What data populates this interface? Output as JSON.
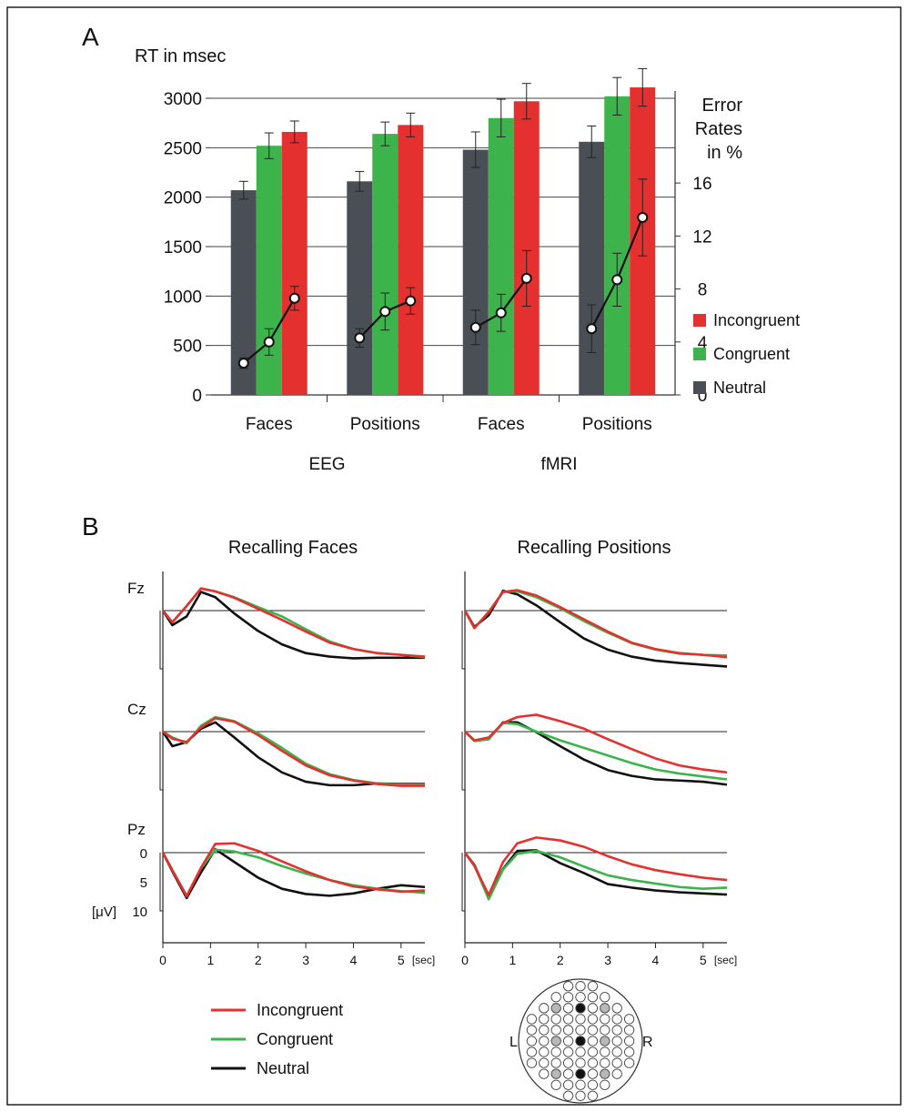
{
  "panelA": {
    "label": "A",
    "ylabel": "RT in msec",
    "y2label_lines": [
      "Error",
      "Rates",
      "in %"
    ],
    "chart_data": {
      "type": "bar",
      "categories": [
        "Faces",
        "Positions",
        "Faces",
        "Positions"
      ],
      "groups": [
        "EEG",
        "fMRI"
      ],
      "ylim": [
        0,
        3000
      ],
      "yticks": [
        0,
        500,
        1000,
        1500,
        2000,
        2500,
        3000
      ],
      "y2lim": [
        0,
        22.4
      ],
      "y2ticks": [
        0,
        4,
        8,
        12,
        16
      ],
      "grid": "horizontal",
      "legend": "right",
      "series": [
        {
          "name": "Neutral",
          "color": "#4a4f55",
          "values": [
            2070,
            2160,
            2480,
            2560
          ],
          "errors": [
            90,
            100,
            180,
            160
          ]
        },
        {
          "name": "Congruent",
          "color": "#3cb44b",
          "values": [
            2520,
            2640,
            2800,
            3020
          ],
          "errors": [
            130,
            120,
            190,
            190
          ]
        },
        {
          "name": "Incongruent",
          "color": "#e53030",
          "values": [
            2660,
            2730,
            2970,
            3110
          ],
          "errors": [
            110,
            120,
            180,
            190
          ]
        }
      ],
      "error_rates": {
        "values": [
          2.4,
          4.0,
          7.3,
          4.3,
          6.3,
          7.1,
          5.1,
          6.2,
          8.8,
          5.0,
          8.7,
          13.4
        ],
        "errors": [
          0.4,
          1.0,
          0.9,
          0.7,
          1.4,
          1.0,
          1.3,
          1.4,
          2.1,
          1.8,
          2.0,
          2.9
        ]
      }
    },
    "legend": [
      {
        "label": "Incongruent",
        "color": "#e53030"
      },
      {
        "label": "Congruent",
        "color": "#3cb44b"
      },
      {
        "label": "Neutral",
        "color": "#4a4f55"
      }
    ]
  },
  "panelB": {
    "label": "B",
    "col_titles": [
      "Recalling Faces",
      "Recalling Positions"
    ],
    "rows": [
      "Fz",
      "Cz",
      "Pz"
    ],
    "y_ticks": [
      "0",
      "5",
      "10"
    ],
    "y_unit": "[μV]",
    "x_ticks": [
      "0",
      "1",
      "2",
      "3",
      "4",
      "5"
    ],
    "x_unit": "[sec]",
    "chart_data": {
      "type": "line",
      "x_range": [
        0,
        5.5
      ],
      "y_range": [
        10,
        -3
      ],
      "y_inverted": true,
      "colors": {
        "Incongruent": "#e53030",
        "Congruent": "#3cb44b",
        "Neutral": "#111111"
      },
      "x": [
        0,
        0.2,
        0.5,
        0.8,
        1.1,
        1.5,
        2,
        2.5,
        3,
        3.5,
        4,
        4.5,
        5,
        5.5
      ],
      "panels": [
        {
          "column": "Recalling Faces",
          "electrode": "Fz",
          "series": [
            {
              "name": "Incongruent",
              "values": [
                0,
                2,
                -0.8,
                -3.8,
                -3.3,
                -2.2,
                -0.3,
                1.6,
                3.6,
                5.5,
                6.6,
                7.3,
                7.6,
                7.9
              ]
            },
            {
              "name": "Congruent",
              "values": [
                0,
                2,
                -0.8,
                -3.8,
                -3.3,
                -2.3,
                -0.6,
                1.0,
                3.2,
                5.3,
                6.6,
                7.3,
                7.6,
                8.0
              ]
            },
            {
              "name": "Neutral",
              "values": [
                0,
                2.5,
                1.0,
                -3.2,
                -2.3,
                0.5,
                3.5,
                5.8,
                7.3,
                7.9,
                8.2,
                8.1,
                8.1,
                8.1
              ]
            }
          ]
        },
        {
          "column": "Recalling Faces",
          "electrode": "Cz",
          "series": [
            {
              "name": "Incongruent",
              "values": [
                0,
                1.2,
                1.8,
                -0.7,
                -2.3,
                -1.7,
                0.6,
                3.3,
                5.8,
                7.5,
                8.4,
                9.0,
                9.3,
                9.3
              ]
            },
            {
              "name": "Congruent",
              "values": [
                0,
                1.0,
                2.0,
                -1.0,
                -2.5,
                -1.8,
                0.3,
                2.8,
                5.5,
                7.3,
                8.3,
                8.9,
                9.1,
                9.1
              ]
            },
            {
              "name": "Neutral",
              "values": [
                0,
                2.5,
                1.8,
                -0.5,
                -1.6,
                1.0,
                4.4,
                7.0,
                8.6,
                9.2,
                9.2,
                8.9,
                9.0,
                9.0
              ]
            }
          ]
        },
        {
          "column": "Recalling Faces",
          "electrode": "Pz",
          "series": [
            {
              "name": "Incongruent",
              "values": [
                0,
                3.0,
                7.5,
                2.6,
                -1.5,
                -1.6,
                -0.3,
                1.5,
                3.2,
                4.7,
                5.8,
                6.3,
                6.7,
                6.5
              ]
            },
            {
              "name": "Congruent",
              "values": [
                0,
                3.0,
                7.4,
                2.7,
                -0.5,
                -0.2,
                0.8,
                2.3,
                3.6,
                4.7,
                5.6,
                6.2,
                6.6,
                6.9
              ]
            },
            {
              "name": "Neutral",
              "values": [
                0,
                3.2,
                7.8,
                3.4,
                -0.6,
                1.6,
                4.3,
                6.2,
                7.1,
                7.4,
                7.0,
                6.2,
                5.6,
                5.9
              ]
            }
          ]
        },
        {
          "column": "Recalling Positions",
          "electrode": "Fz",
          "series": [
            {
              "name": "Incongruent",
              "values": [
                0,
                3.0,
                0.3,
                -3.2,
                -3.5,
                -2.6,
                -0.6,
                1.5,
                3.6,
                5.5,
                6.6,
                7.3,
                7.6,
                8.0
              ]
            },
            {
              "name": "Congruent",
              "values": [
                0,
                3.0,
                0.2,
                -3.2,
                -3.3,
                -2.3,
                -0.4,
                1.8,
                3.8,
                5.6,
                6.7,
                7.4,
                7.6,
                7.7
              ]
            },
            {
              "name": "Neutral",
              "values": [
                0,
                2.8,
                0.8,
                -3.4,
                -2.8,
                -0.9,
                2.0,
                4.8,
                6.7,
                7.9,
                8.6,
                9.0,
                9.3,
                9.6
              ]
            }
          ]
        },
        {
          "column": "Recalling Positions",
          "electrode": "Cz",
          "series": [
            {
              "name": "Incongruent",
              "values": [
                0,
                1.5,
                1.0,
                -1.5,
                -2.5,
                -2.9,
                -1.8,
                -0.5,
                1.3,
                3.0,
                4.6,
                5.8,
                6.5,
                7.0
              ]
            },
            {
              "name": "Congruent",
              "values": [
                0,
                1.6,
                1.3,
                -1.5,
                -1.3,
                0.0,
                1.5,
                2.8,
                4.1,
                5.4,
                6.5,
                7.2,
                7.7,
                8.2
              ]
            },
            {
              "name": "Neutral",
              "values": [
                0,
                1.6,
                1.3,
                -1.6,
                -1.6,
                0.1,
                2.5,
                4.8,
                6.6,
                7.6,
                8.2,
                8.4,
                8.6,
                9.1
              ]
            }
          ]
        },
        {
          "column": "Recalling Positions",
          "electrode": "Pz",
          "series": [
            {
              "name": "Incongruent",
              "values": [
                0,
                2.3,
                7.3,
                1.6,
                -1.6,
                -2.6,
                -2.1,
                -1.0,
                0.6,
                2.0,
                3.0,
                3.7,
                4.3,
                4.7
              ]
            },
            {
              "name": "Congruent",
              "values": [
                0,
                2.2,
                8.0,
                2.9,
                0.2,
                -0.3,
                0.8,
                2.4,
                3.9,
                4.7,
                5.3,
                5.9,
                6.2,
                6.0
              ]
            },
            {
              "name": "Neutral",
              "values": [
                0,
                2.1,
                7.7,
                2.8,
                -0.3,
                -0.4,
                1.8,
                3.5,
                5.4,
                6.0,
                6.5,
                6.8,
                7.0,
                7.2
              ]
            }
          ]
        }
      ]
    },
    "legend": [
      {
        "label": "Incongruent",
        "color": "#e53030"
      },
      {
        "label": "Congruent",
        "color": "#3cb44b"
      },
      {
        "label": "Neutral",
        "color": "#111111"
      }
    ],
    "head_map": {
      "left_label": "L",
      "right_label": "R",
      "active_color": "#111111",
      "used_color": "#b8b8b8"
    }
  }
}
